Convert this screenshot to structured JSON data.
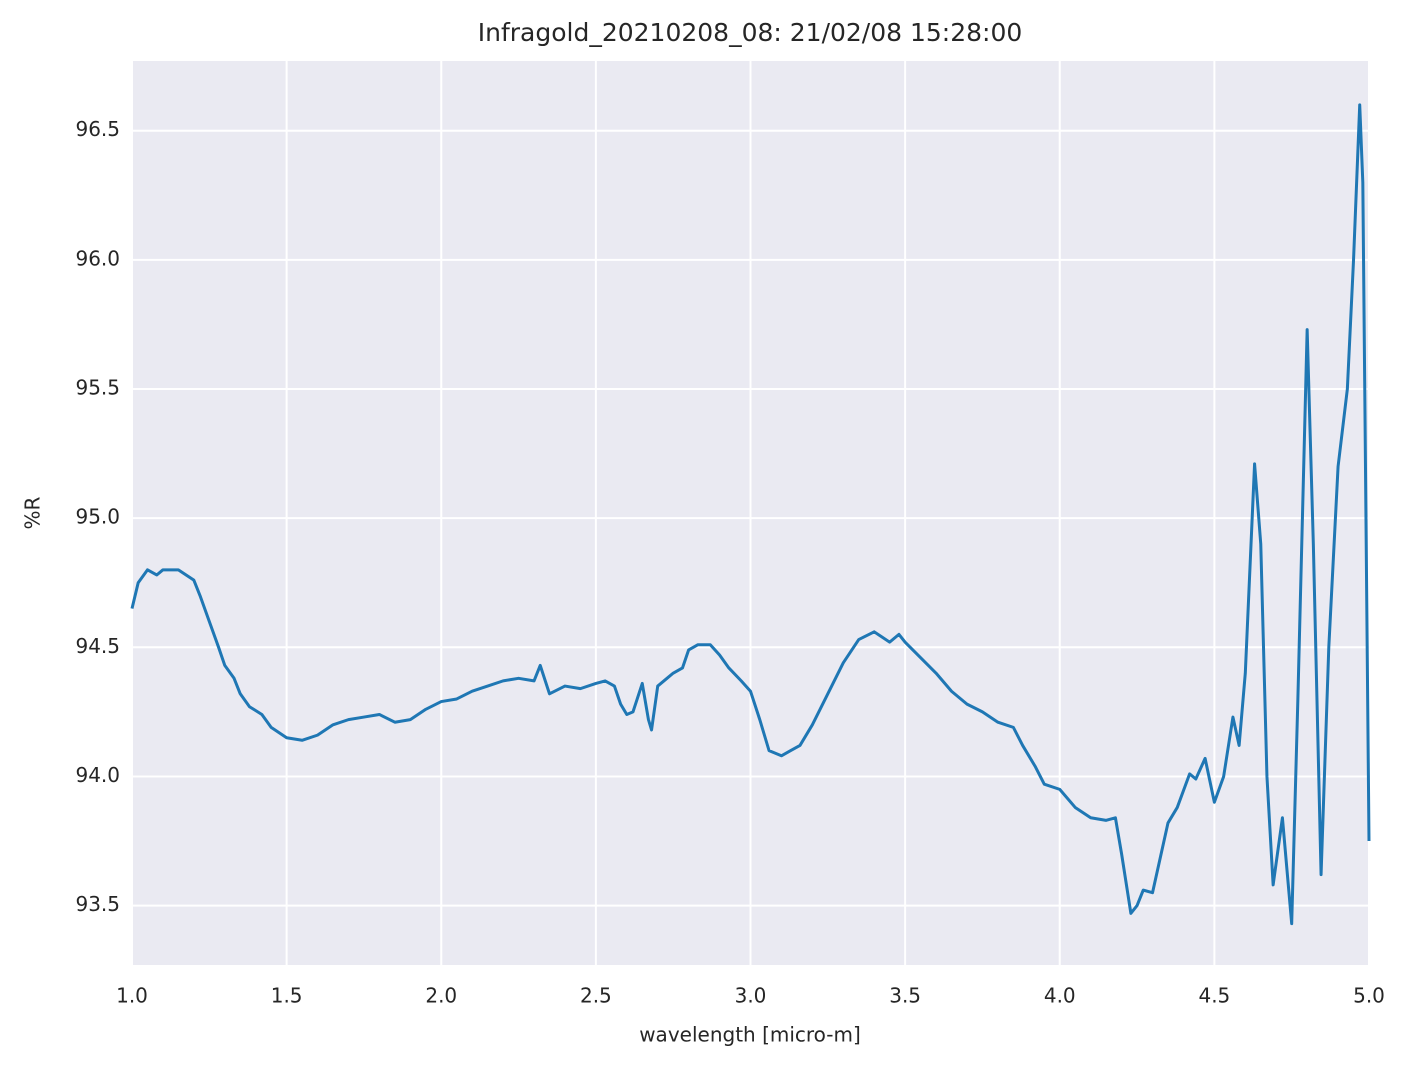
{
  "chart_data": {
    "type": "line",
    "title": "Infragold_20210208_08:  21/02/08 15:28:00",
    "xlabel": "wavelength [micro-m]",
    "ylabel": "%R",
    "x": [
      1.0,
      1.02,
      1.05,
      1.08,
      1.1,
      1.15,
      1.2,
      1.22,
      1.25,
      1.28,
      1.3,
      1.33,
      1.35,
      1.38,
      1.42,
      1.45,
      1.5,
      1.55,
      1.6,
      1.65,
      1.7,
      1.75,
      1.8,
      1.85,
      1.9,
      1.95,
      2.0,
      2.05,
      2.1,
      2.15,
      2.2,
      2.25,
      2.3,
      2.32,
      2.35,
      2.4,
      2.45,
      2.5,
      2.53,
      2.56,
      2.58,
      2.6,
      2.62,
      2.65,
      2.67,
      2.68,
      2.7,
      2.73,
      2.75,
      2.78,
      2.8,
      2.83,
      2.87,
      2.9,
      2.93,
      2.97,
      3.0,
      3.03,
      3.06,
      3.1,
      3.13,
      3.16,
      3.2,
      3.25,
      3.3,
      3.35,
      3.4,
      3.45,
      3.48,
      3.5,
      3.55,
      3.6,
      3.65,
      3.7,
      3.75,
      3.8,
      3.85,
      3.88,
      3.92,
      3.95,
      4.0,
      4.05,
      4.1,
      4.15,
      4.18,
      4.2,
      4.23,
      4.25,
      4.27,
      4.3,
      4.35,
      4.38,
      4.42,
      4.44,
      4.47,
      4.5,
      4.53,
      4.56,
      4.58,
      4.6,
      4.63,
      4.65,
      4.67,
      4.69,
      4.72,
      4.75,
      4.77,
      4.8,
      4.82,
      4.845,
      4.87,
      4.9,
      4.93,
      4.95,
      4.97,
      4.98,
      5.0
    ],
    "series": [
      {
        "name": "%R",
        "color": "#1f77b4",
        "values": [
          94.65,
          94.75,
          94.8,
          94.78,
          94.8,
          94.8,
          94.76,
          94.7,
          94.6,
          94.5,
          94.43,
          94.38,
          94.32,
          94.27,
          94.24,
          94.19,
          94.15,
          94.14,
          94.16,
          94.2,
          94.22,
          94.23,
          94.24,
          94.21,
          94.22,
          94.26,
          94.29,
          94.3,
          94.33,
          94.35,
          94.37,
          94.38,
          94.37,
          94.43,
          94.32,
          94.35,
          94.34,
          94.36,
          94.37,
          94.35,
          94.28,
          94.24,
          94.25,
          94.36,
          94.22,
          94.18,
          94.35,
          94.38,
          94.4,
          94.42,
          94.49,
          94.51,
          94.51,
          94.47,
          94.42,
          94.37,
          94.33,
          94.22,
          94.1,
          94.08,
          94.1,
          94.12,
          94.2,
          94.32,
          94.44,
          94.53,
          94.56,
          94.52,
          94.55,
          94.52,
          94.46,
          94.4,
          94.33,
          94.28,
          94.25,
          94.21,
          94.19,
          94.12,
          94.04,
          93.97,
          93.95,
          93.88,
          93.84,
          93.83,
          93.84,
          93.7,
          93.47,
          93.5,
          93.56,
          93.55,
          93.82,
          93.88,
          94.01,
          93.99,
          94.07,
          93.9,
          94.0,
          94.23,
          94.12,
          94.4,
          95.21,
          94.9,
          94.0,
          93.58,
          93.84,
          93.43,
          94.3,
          95.73,
          94.9,
          93.62,
          94.5,
          95.2,
          95.5,
          96.0,
          96.6,
          96.3,
          93.75
        ]
      }
    ],
    "xlim": [
      1.0,
      5.0
    ],
    "xticks": [
      {
        "value": 1,
        "label": "1.0"
      },
      1.5,
      {
        "value": 2,
        "label": "2.0"
      },
      2.5,
      {
        "value": 3,
        "label": "3.0"
      },
      3.5,
      {
        "value": 4,
        "label": "4.0"
      },
      4.5,
      {
        "value": 5,
        "label": "5.0"
      }
    ],
    "ylim": [
      93.27,
      96.77
    ],
    "yticks": [
      93.5,
      {
        "value": 94,
        "label": "94.0"
      },
      94.5,
      {
        "value": 95,
        "label": "95.0"
      },
      95.5,
      {
        "value": 96,
        "label": "96.0"
      },
      96.5
    ],
    "grid": true
  }
}
